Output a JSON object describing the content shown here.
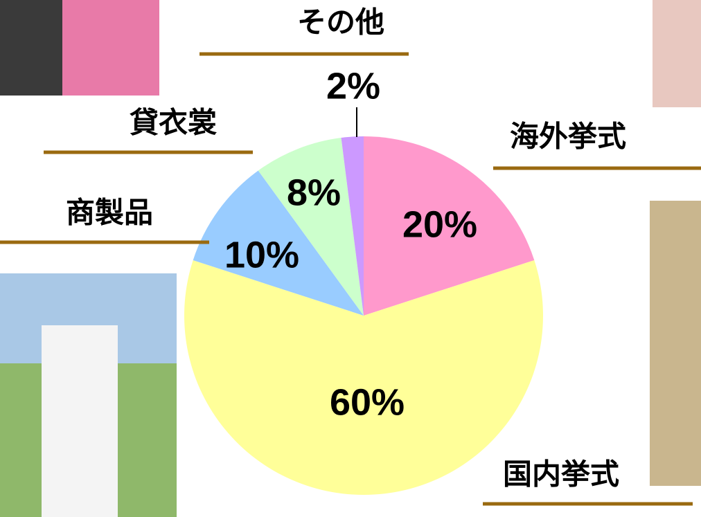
{
  "chart_data": {
    "type": "pie",
    "categories": [
      "海外挙式",
      "国内挙式",
      "商製品",
      "貸衣裳",
      "その他"
    ],
    "values": [
      20,
      60,
      10,
      8,
      2
    ],
    "value_labels": [
      "20%",
      "60%",
      "10%",
      "8%",
      "2%"
    ],
    "colors": [
      "#ff99cc",
      "#ffff99",
      "#99ccff",
      "#ccffcc",
      "#cc99ff"
    ]
  }
}
